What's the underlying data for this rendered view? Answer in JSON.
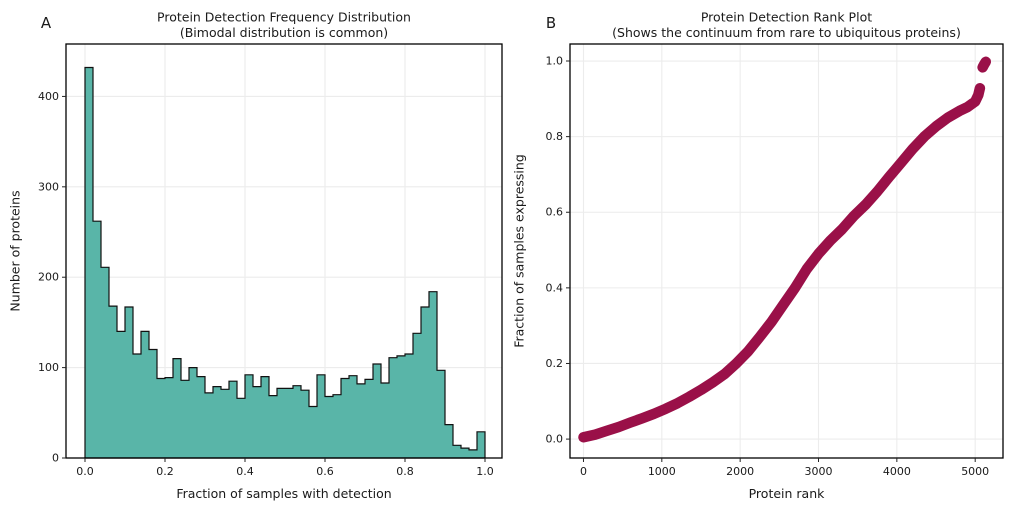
{
  "panels": [
    {
      "id": "A",
      "letter": "A",
      "title": "Protein Detection Frequency Distribution",
      "subtitle": "(Bimodal distribution is common)",
      "xlabel": "Fraction of samples with detection",
      "ylabel": "Number of proteins",
      "x_tick_labels": [
        "0.0",
        "0.2",
        "0.4",
        "0.6",
        "0.8",
        "1.0"
      ],
      "y_tick_labels": [
        "0",
        "100",
        "200",
        "300",
        "400"
      ]
    },
    {
      "id": "B",
      "letter": "B",
      "title": "Protein Detection Rank Plot",
      "subtitle": "(Shows the continuum from rare to ubiquitous proteins)",
      "xlabel": "Protein rank",
      "ylabel": "Fraction of samples expressing",
      "x_tick_labels": [
        "0",
        "1000",
        "2000",
        "3000",
        "4000",
        "5000"
      ],
      "y_tick_labels": [
        "0.0",
        "0.2",
        "0.4",
        "0.6",
        "0.8",
        "1.0"
      ]
    }
  ],
  "chart_data": [
    {
      "type": "bar",
      "panel": "A",
      "title": "Protein Detection Frequency Distribution (Bimodal distribution is common)",
      "xlabel": "Fraction of samples with detection",
      "ylabel": "Number of proteins",
      "histogram": true,
      "bin_start": 0.0,
      "bin_width": 0.02,
      "values": [
        432,
        262,
        211,
        168,
        140,
        167,
        115,
        140,
        120,
        88,
        89,
        110,
        86,
        100,
        90,
        72,
        79,
        76,
        85,
        66,
        92,
        79,
        90,
        69,
        77,
        77,
        80,
        75,
        57,
        92,
        68,
        70,
        88,
        91,
        82,
        87,
        104,
        83,
        111,
        113,
        115,
        138,
        167,
        184,
        97,
        37,
        14,
        11,
        9,
        29
      ],
      "x_ticks": [
        0,
        0.2,
        0.4,
        0.6,
        0.8,
        1.0
      ],
      "y_ticks": [
        0,
        100,
        200,
        300,
        400
      ],
      "xlim": [
        -0.0475,
        1.0425
      ],
      "ylim": [
        0,
        458
      ],
      "grid": true,
      "bar_color": "#59b5a8",
      "bar_edge_color": "#111111"
    },
    {
      "type": "scatter",
      "panel": "B",
      "title": "Protein Detection Rank Plot (Shows the continuum from rare to ubiquitous proteins)",
      "xlabel": "Protein rank",
      "ylabel": "Fraction of samples expressing",
      "x_ticks": [
        0,
        1000,
        2000,
        3000,
        4000,
        5000
      ],
      "y_ticks": [
        0,
        0.2,
        0.4,
        0.6,
        0.8,
        1.0
      ],
      "xlim": [
        -172,
        5355
      ],
      "ylim": [
        -0.05,
        1.045
      ],
      "grid": true,
      "point_color": "#9a1048",
      "marker_diameter_px": 10.5,
      "n_proteins_approx": 5150,
      "series": [
        {
          "name": "rank_curve",
          "points": [
            [
              0,
              0.005
            ],
            [
              150,
              0.012
            ],
            [
              300,
              0.022
            ],
            [
              450,
              0.032
            ],
            [
              600,
              0.044
            ],
            [
              750,
              0.055
            ],
            [
              900,
              0.067
            ],
            [
              1050,
              0.08
            ],
            [
              1200,
              0.095
            ],
            [
              1350,
              0.112
            ],
            [
              1500,
              0.13
            ],
            [
              1650,
              0.15
            ],
            [
              1800,
              0.172
            ],
            [
              1950,
              0.2
            ],
            [
              2100,
              0.232
            ],
            [
              2250,
              0.27
            ],
            [
              2400,
              0.31
            ],
            [
              2550,
              0.355
            ],
            [
              2700,
              0.4
            ],
            [
              2850,
              0.45
            ],
            [
              3000,
              0.49
            ],
            [
              3150,
              0.525
            ],
            [
              3300,
              0.555
            ],
            [
              3450,
              0.59
            ],
            [
              3600,
              0.62
            ],
            [
              3750,
              0.655
            ],
            [
              3900,
              0.693
            ],
            [
              4050,
              0.73
            ],
            [
              4200,
              0.767
            ],
            [
              4350,
              0.8
            ],
            [
              4500,
              0.827
            ],
            [
              4650,
              0.85
            ],
            [
              4800,
              0.868
            ],
            [
              4900,
              0.878
            ],
            [
              5000,
              0.893
            ],
            [
              5040,
              0.91
            ],
            [
              5060,
              0.928
            ]
          ]
        },
        {
          "name": "top_cluster",
          "points": [
            [
              5095,
              0.983
            ],
            [
              5115,
              0.991
            ],
            [
              5135,
              0.998
            ]
          ]
        }
      ]
    }
  ],
  "colors": {
    "background": "#ffffff",
    "histogram_fill": "#59b5a8",
    "histogram_edge": "#111111",
    "scatter": "#9a1048",
    "gridline": "#ececec",
    "spine": "#000000",
    "text": "#1a1a1a"
  }
}
